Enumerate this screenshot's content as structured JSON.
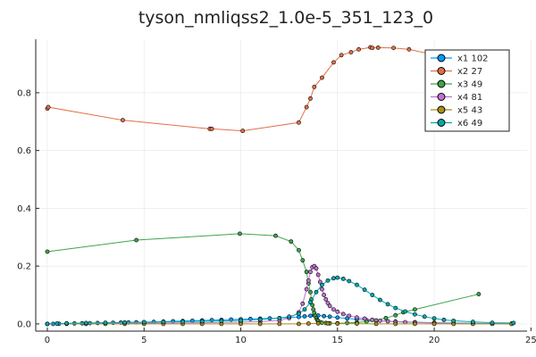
{
  "chart_data": {
    "type": "line",
    "title": "tyson_nmliqss2_1.0e-5_351_123_0",
    "xlabel": "",
    "ylabel": "",
    "xlim": [
      -0.6,
      24.8
    ],
    "ylim": [
      -0.025,
      0.985
    ],
    "xticks": [
      0,
      5,
      10,
      15,
      20,
      25
    ],
    "yticks": [
      0.0,
      0.2,
      0.4,
      0.6,
      0.8
    ],
    "xtick_labels": [
      "0",
      "5",
      "10",
      "15",
      "20",
      "25"
    ],
    "ytick_labels": [
      "0.0",
      "0.2",
      "0.4",
      "0.6",
      "0.8"
    ],
    "grid": true,
    "legend_position": "top-right",
    "series": [
      {
        "name": "x1 102",
        "color": "#009AFA",
        "x": [
          0,
          0.3,
          0.6,
          1,
          1.4,
          1.8,
          2.2,
          2.6,
          3,
          3.4,
          3.8,
          4.2,
          4.6,
          5,
          5.5,
          6,
          6.5,
          7,
          7.5,
          8,
          8.5,
          9,
          9.5,
          10,
          10.5,
          11,
          11.5,
          12,
          12.5,
          13,
          13.3,
          13.6,
          13.8,
          14,
          14.3,
          14.6,
          15,
          15.5,
          16,
          16.5,
          17,
          18,
          19,
          20,
          21,
          22,
          23,
          24
        ],
        "y": [
          0.0,
          0.0,
          0.0005,
          0.001,
          0.0015,
          0.002,
          0.0025,
          0.003,
          0.0035,
          0.004,
          0.0045,
          0.005,
          0.0055,
          0.006,
          0.007,
          0.008,
          0.009,
          0.01,
          0.011,
          0.012,
          0.013,
          0.014,
          0.015,
          0.016,
          0.017,
          0.018,
          0.019,
          0.02,
          0.022,
          0.024,
          0.026,
          0.028,
          0.03,
          0.029,
          0.027,
          0.025,
          0.022,
          0.019,
          0.016,
          0.013,
          0.011,
          0.008,
          0.006,
          0.004,
          0.003,
          0.002,
          0.001,
          0.001
        ]
      },
      {
        "name": "x2 27",
        "color": "#E26F46",
        "x": [
          0,
          0.05,
          3.9,
          8.4,
          8.5,
          10.1,
          13,
          13.4,
          13.6,
          13.8,
          14.2,
          14.8,
          15.2,
          15.7,
          16.1,
          16.7,
          16.8,
          17.1,
          17.9,
          18.7,
          20.1
        ],
        "y": [
          0.745,
          0.75,
          0.705,
          0.675,
          0.675,
          0.668,
          0.697,
          0.75,
          0.78,
          0.82,
          0.852,
          0.905,
          0.93,
          0.94,
          0.95,
          0.957,
          0.955,
          0.956,
          0.955,
          0.95,
          0.93
        ]
      },
      {
        "name": "x3 49",
        "color": "#3EA44E",
        "x": [
          0.0,
          4.6,
          9.95,
          11.8,
          12.6,
          13.0,
          13.2,
          13.4,
          13.5,
          13.6,
          13.65,
          13.7,
          13.75,
          13.8,
          13.85,
          13.9,
          13.95,
          14.0,
          14.1,
          14.2,
          14.4,
          14.6,
          15,
          15.5,
          16,
          16.5,
          17,
          17.5,
          18,
          18.4,
          19,
          22.3
        ],
        "y": [
          0.25,
          0.29,
          0.312,
          0.305,
          0.285,
          0.255,
          0.22,
          0.18,
          0.14,
          0.11,
          0.085,
          0.065,
          0.05,
          0.038,
          0.028,
          0.02,
          0.014,
          0.01,
          0.006,
          0.004,
          0.003,
          0.002,
          0.002,
          0.003,
          0.005,
          0.008,
          0.012,
          0.02,
          0.03,
          0.04,
          0.05,
          0.103
        ]
      },
      {
        "name": "x4 81",
        "color": "#C371D2",
        "x": [
          0,
          2,
          4,
          6,
          8,
          10,
          11,
          12,
          12.5,
          13,
          13.2,
          13.4,
          13.5,
          13.6,
          13.7,
          13.8,
          13.9,
          14.0,
          14.1,
          14.2,
          14.3,
          14.4,
          14.5,
          14.6,
          14.8,
          15.0,
          15.3,
          15.6,
          16,
          16.4,
          16.8,
          17.2,
          17.6,
          18,
          18.5,
          19,
          20,
          21,
          22,
          23,
          24
        ],
        "y": [
          0.0,
          0.001,
          0.002,
          0.003,
          0.004,
          0.006,
          0.008,
          0.012,
          0.02,
          0.04,
          0.07,
          0.12,
          0.15,
          0.18,
          0.196,
          0.2,
          0.192,
          0.17,
          0.145,
          0.12,
          0.1,
          0.085,
          0.072,
          0.062,
          0.05,
          0.042,
          0.034,
          0.028,
          0.022,
          0.018,
          0.014,
          0.011,
          0.009,
          0.007,
          0.006,
          0.005,
          0.003,
          0.002,
          0.001,
          0.001,
          0.0005
        ]
      },
      {
        "name": "x5 43",
        "color": "#AC8D18",
        "x": [
          0,
          1,
          2,
          3,
          4,
          5,
          6,
          7,
          8,
          9,
          10,
          11,
          12,
          13,
          13.5,
          14,
          14.5,
          15,
          16,
          17,
          18,
          19,
          20,
          21,
          22,
          23,
          24
        ],
        "y": [
          0.0,
          0.0,
          0.0,
          0.0,
          0.0,
          0.0,
          0.0,
          0.0,
          0.0,
          0.0,
          0.0,
          0.0,
          0.0,
          0.0,
          0.001,
          0.002,
          0.002,
          0.001,
          0.001,
          0.0,
          0.0,
          0.0,
          0.0,
          0.0,
          0.0,
          0.0,
          0.0
        ]
      },
      {
        "name": "x6 49",
        "color": "#00A9AD",
        "x": [
          0,
          0.5,
          1,
          2,
          3,
          4,
          5,
          6,
          7,
          8,
          9,
          10,
          11,
          12,
          12.5,
          13,
          13.3,
          13.6,
          13.9,
          14.2,
          14.5,
          14.8,
          15.0,
          15.3,
          15.6,
          16.0,
          16.4,
          16.8,
          17.2,
          17.6,
          18,
          18.5,
          19,
          19.5,
          20,
          20.5,
          21,
          22,
          23,
          24.1
        ],
        "y": [
          0.0,
          0.001,
          0.002,
          0.003,
          0.004,
          0.005,
          0.006,
          0.007,
          0.008,
          0.009,
          0.01,
          0.012,
          0.015,
          0.02,
          0.025,
          0.035,
          0.05,
          0.075,
          0.11,
          0.135,
          0.15,
          0.158,
          0.16,
          0.156,
          0.148,
          0.135,
          0.118,
          0.1,
          0.083,
          0.068,
          0.055,
          0.043,
          0.033,
          0.025,
          0.019,
          0.014,
          0.011,
          0.007,
          0.004,
          0.003
        ]
      }
    ]
  }
}
